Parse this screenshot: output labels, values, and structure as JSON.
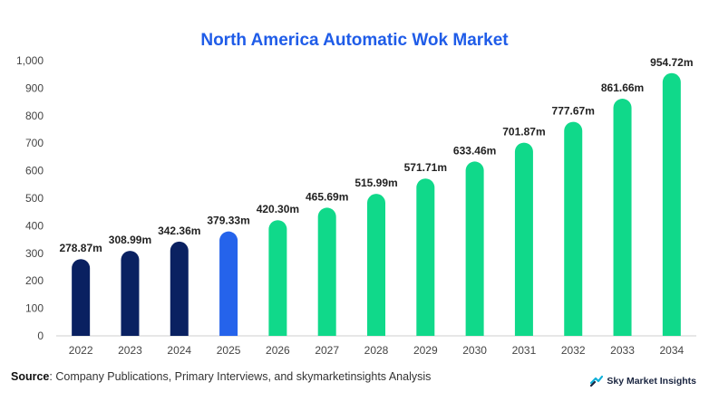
{
  "chart_data": {
    "type": "bar",
    "title": "North America Automatic Wok Market",
    "categories": [
      "2022",
      "2023",
      "2024",
      "2025",
      "2026",
      "2027",
      "2028",
      "2029",
      "2030",
      "2031",
      "2032",
      "2033",
      "2034"
    ],
    "values": [
      278.87,
      308.99,
      342.36,
      379.33,
      420.3,
      465.69,
      515.99,
      571.71,
      633.46,
      701.87,
      777.67,
      861.66,
      954.72
    ],
    "value_labels": [
      "278.87m",
      "308.99m",
      "342.36m",
      "379.33m",
      "420.30m",
      "465.69m",
      "515.99m",
      "571.71m",
      "633.46m",
      "701.87m",
      "777.67m",
      "861.66m",
      "954.72m"
    ],
    "bar_colors": [
      "#0a2161",
      "#0a2161",
      "#0a2161",
      "#2563eb",
      "#10d98a",
      "#10d98a",
      "#10d98a",
      "#10d98a",
      "#10d98a",
      "#10d98a",
      "#10d98a",
      "#10d98a",
      "#10d98a"
    ],
    "ylim": [
      0,
      1000
    ],
    "yticks": [
      0,
      100,
      200,
      300,
      400,
      500,
      600,
      700,
      800,
      900,
      1000
    ],
    "ytick_labels": [
      "0",
      "100",
      "200",
      "300",
      "400",
      "500",
      "600",
      "700",
      "800",
      "900",
      "1,000"
    ],
    "grid": false,
    "xlabel": "",
    "ylabel": ""
  },
  "footer": {
    "source_bold": "Source",
    "source_text": ": Company Publications, Primary Interviews, and skymarketinsights Analysis",
    "brand": "Sky Market Insights",
    "brand_icon": "sky-market-insights-logo"
  },
  "colors": {
    "title": "#1f5ce8",
    "historical": "#0a2161",
    "base_year": "#2563eb",
    "forecast": "#10d98a"
  }
}
